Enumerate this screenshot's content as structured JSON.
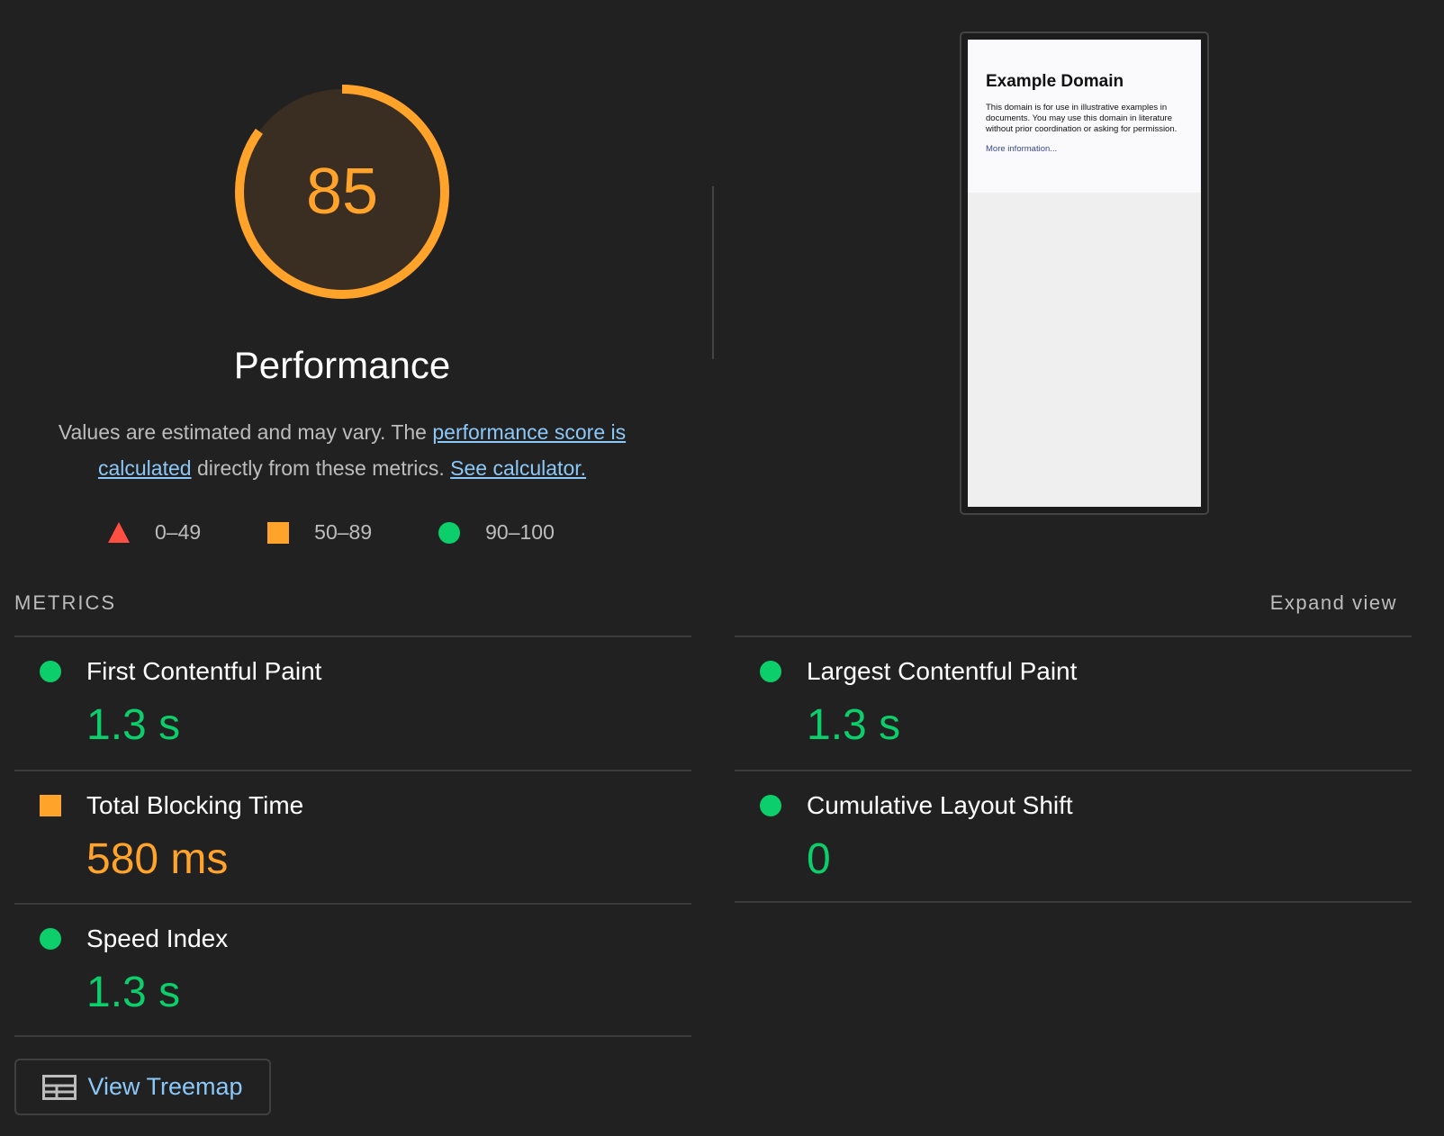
{
  "gauge": {
    "score": 85,
    "label": "Performance",
    "color": "#ffa32b"
  },
  "description": {
    "text1": "Values are estimated and may vary. The ",
    "link1": "performance score is calculated",
    "text2": " directly from these metrics. ",
    "link2": "See calculator."
  },
  "legend": [
    {
      "icon": "triangle-icon",
      "range": "0–49",
      "color": "#ff4e42"
    },
    {
      "icon": "square-icon",
      "range": "50–89",
      "color": "#ffa32b"
    },
    {
      "icon": "circle-icon",
      "range": "90–100",
      "color": "#0cce6b"
    }
  ],
  "screenshot": {
    "heading": "Example Domain",
    "body": "This domain is for use in illustrative examples in documents. You may use this domain in literature without prior coordination or asking for permission.",
    "link": "More information..."
  },
  "metrics": {
    "header": "METRICS",
    "expand": "Expand view",
    "items": [
      {
        "label": "First Contentful Paint",
        "value": "1.3 s",
        "status": "pass"
      },
      {
        "label": "Largest Contentful Paint",
        "value": "1.3 s",
        "status": "pass"
      },
      {
        "label": "Total Blocking Time",
        "value": "580 ms",
        "status": "average"
      },
      {
        "label": "Cumulative Layout Shift",
        "value": "0",
        "status": "pass"
      },
      {
        "label": "Speed Index",
        "value": "1.3 s",
        "status": "pass"
      }
    ]
  },
  "treemap": {
    "label": "View Treemap"
  }
}
